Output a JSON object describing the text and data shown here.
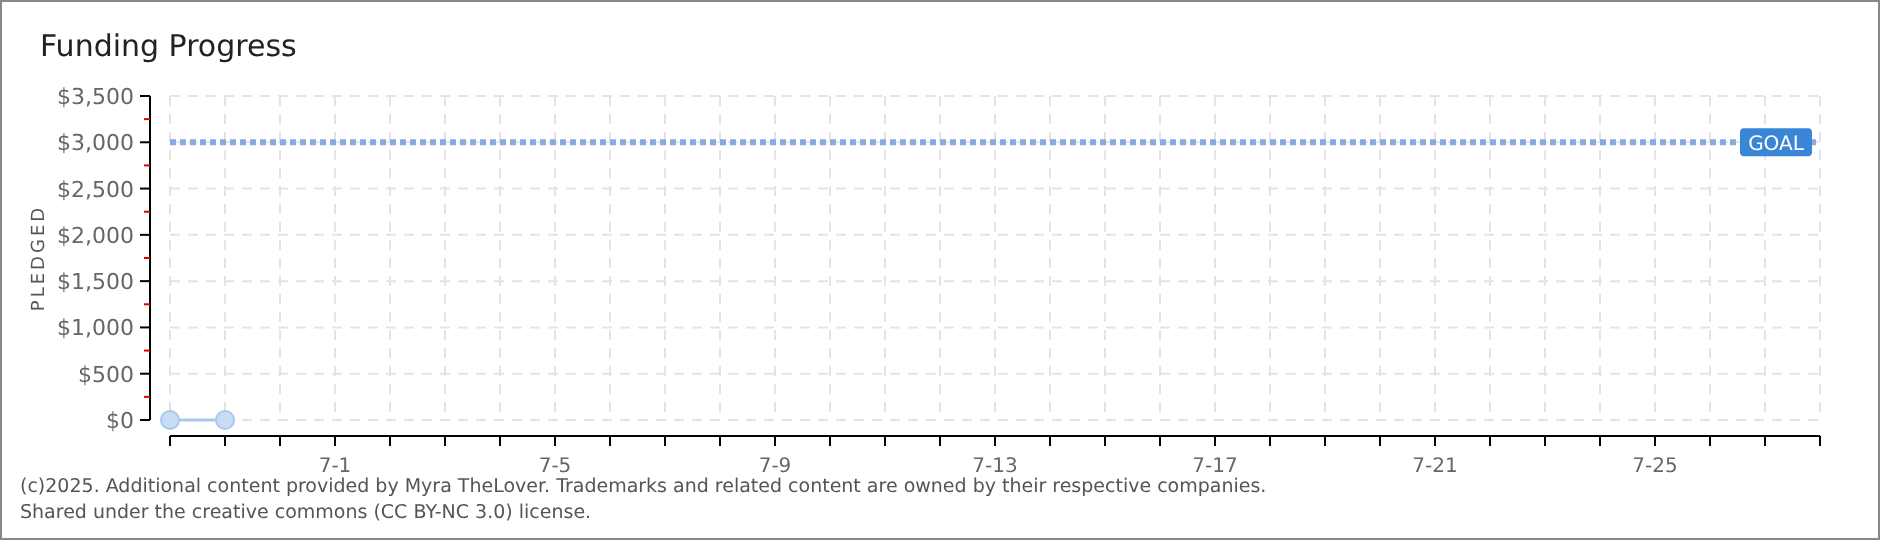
{
  "chart_data": {
    "type": "line",
    "title": "Funding Progress",
    "ylabel": "PLEDGED",
    "x": [
      "--06-28",
      "--06-29"
    ],
    "series": [
      {
        "color": "#a8c8ec",
        "values": [
          0,
          0
        ]
      }
    ],
    "marker": "circle",
    "grid": true,
    "xlim": [
      "--06-28",
      "--07-28"
    ],
    "xticks": [
      {
        "value": "--06-28",
        "label": null
      },
      {
        "value": "--06-29",
        "label": null
      },
      {
        "value": "--06-30",
        "label": null
      },
      {
        "value": "--07-01",
        "label": "7-1"
      },
      {
        "value": "--07-02",
        "label": null
      },
      {
        "value": "--07-03",
        "label": null
      },
      {
        "value": "--07-04",
        "label": null
      },
      {
        "value": "--07-05",
        "label": "7-5"
      },
      {
        "value": "--07-06",
        "label": null
      },
      {
        "value": "--07-07",
        "label": null
      },
      {
        "value": "--07-08",
        "label": null
      },
      {
        "value": "--07-09",
        "label": "7-9"
      },
      {
        "value": "--07-10",
        "label": null
      },
      {
        "value": "--07-11",
        "label": null
      },
      {
        "value": "--07-12",
        "label": null
      },
      {
        "value": "--07-13",
        "label": "7-13"
      },
      {
        "value": "--07-14",
        "label": null
      },
      {
        "value": "--07-15",
        "label": null
      },
      {
        "value": "--07-16",
        "label": null
      },
      {
        "value": "--07-17",
        "label": "7-17"
      },
      {
        "value": "--07-18",
        "label": null
      },
      {
        "value": "--07-19",
        "label": null
      },
      {
        "value": "--07-20",
        "label": null
      },
      {
        "value": "--07-21",
        "label": "7-21"
      },
      {
        "value": "--07-22",
        "label": null
      },
      {
        "value": "--07-23",
        "label": null
      },
      {
        "value": "--07-24",
        "label": null
      },
      {
        "value": "--07-25",
        "label": "7-25"
      },
      {
        "value": "--07-26",
        "label": null
      },
      {
        "value": "--07-27",
        "label": null
      },
      {
        "value": "--07-28",
        "label": null
      }
    ],
    "ylim": [
      0,
      3500
    ],
    "yticks": [
      {
        "value": 0,
        "label": "$0"
      },
      {
        "value": 500,
        "label": "$500"
      },
      {
        "value": 1000,
        "label": "$1,000"
      },
      {
        "value": 1500,
        "label": "$1,500"
      },
      {
        "value": 2000,
        "label": "$2,000"
      },
      {
        "value": 2500,
        "label": "$2,500"
      },
      {
        "value": 3000,
        "label": "$3,000"
      },
      {
        "value": 3500,
        "label": "$3,500"
      }
    ],
    "ref_lines": [
      {
        "axis": "y",
        "value": 3000,
        "label": "GOAL",
        "color": "#88aadd",
        "line_style": "dotted"
      }
    ],
    "annotations": [
      "(c)2025. Additional content provided by Myra TheLover. Trademarks and related content are owned by their respective companies.",
      "Shared under the creative commons (CC BY-NC 3.0) license."
    ]
  }
}
